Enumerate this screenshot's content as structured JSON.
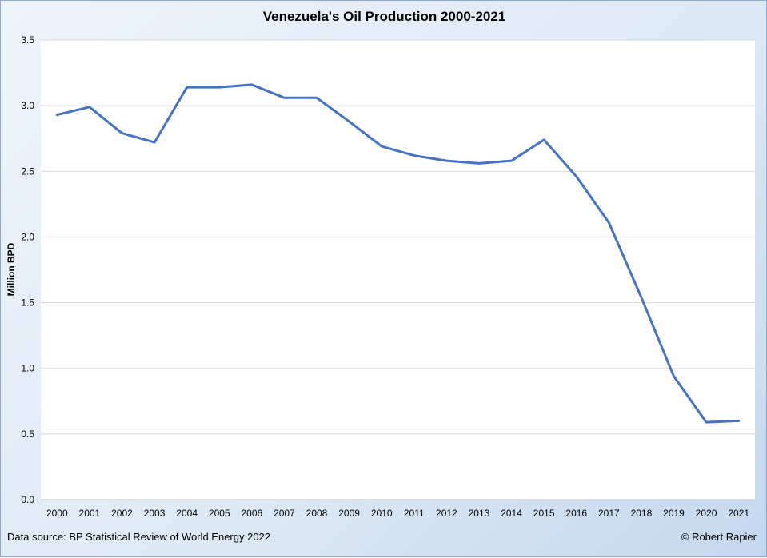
{
  "source_note": "Data source: BP Statistical Review of World Energy 2022",
  "credit": "© Robert Rapier",
  "chart_data": {
    "type": "line",
    "title": "Venezuela's Oil Production 2000-2021",
    "xlabel": "",
    "ylabel": "Million BPD",
    "ylim": [
      0,
      3.5
    ],
    "yticks": [
      "0.0",
      "0.5",
      "1.0",
      "1.5",
      "2.0",
      "2.5",
      "3.0",
      "3.5"
    ],
    "grid": true,
    "categories": [
      "2000",
      "2001",
      "2002",
      "2003",
      "2004",
      "2005",
      "2006",
      "2007",
      "2008",
      "2009",
      "2010",
      "2011",
      "2012",
      "2013",
      "2014",
      "2015",
      "2016",
      "2017",
      "2018",
      "2019",
      "2020",
      "2021"
    ],
    "series": [
      {
        "color": "#4472c4",
        "values": [
          2.93,
          2.99,
          2.79,
          2.72,
          3.14,
          3.14,
          3.16,
          3.06,
          3.06,
          2.88,
          2.69,
          2.62,
          2.58,
          2.56,
          2.58,
          2.74,
          2.46,
          2.11,
          1.54,
          0.94,
          0.59,
          0.6
        ]
      }
    ]
  }
}
